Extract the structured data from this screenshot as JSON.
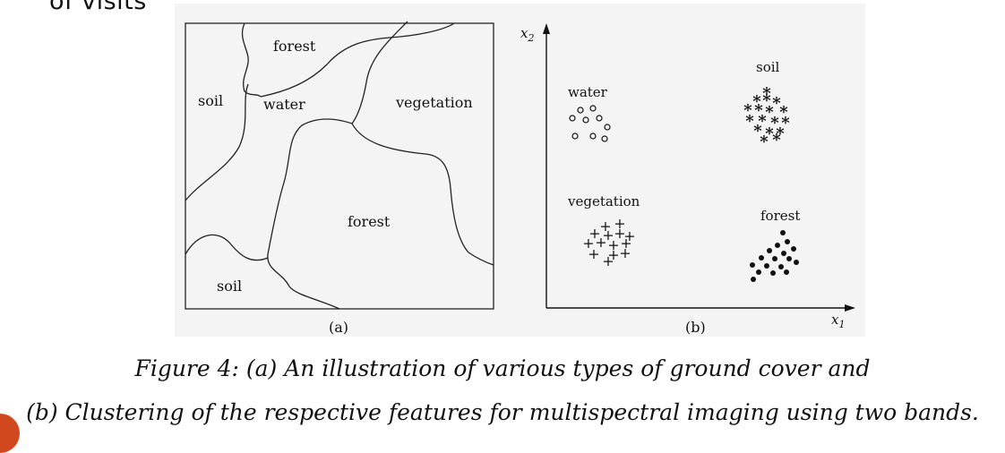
{
  "top_fragment": "of visits",
  "panel_a": {
    "regions": {
      "forest_top": "forest",
      "soil_left": "soil",
      "water": "water",
      "vegetation": "vegetation",
      "forest_center": "forest",
      "soil_bottom": "soil"
    },
    "label": "(a)"
  },
  "panel_b": {
    "x_axis_label": "x",
    "x_axis_sub": "1",
    "y_axis_label": "x",
    "y_axis_sub": "2",
    "clusters": {
      "water": "water",
      "soil": "soil",
      "vegetation": "vegetation",
      "forest": "forest"
    },
    "label": "(b)"
  },
  "caption": {
    "line1": "Figure 4: (a) An illustration of various types of ground cover and",
    "line2": "(b) Clustering of the respective features for multispectral imaging using two bands."
  },
  "colors": {
    "panel_bg": "#f4f4f4",
    "ink": "#111111",
    "accent_dot": "#d2481e"
  }
}
